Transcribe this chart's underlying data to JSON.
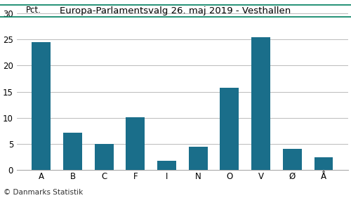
{
  "title": "Europa-Parlamentsvalg 26. maj 2019 - Vesthallen",
  "categories": [
    "A",
    "B",
    "C",
    "F",
    "I",
    "N",
    "O",
    "V",
    "Ø",
    "Å"
  ],
  "values": [
    24.5,
    7.2,
    5.0,
    10.1,
    1.8,
    4.5,
    15.7,
    25.5,
    4.1,
    2.5
  ],
  "bar_color": "#1a6e8a",
  "pct_label": "Pct.",
  "ylim": [
    0,
    32
  ],
  "yticks": [
    0,
    5,
    10,
    15,
    20,
    25,
    30
  ],
  "footer": "© Danmarks Statistik",
  "title_color": "#000000",
  "grid_color": "#b0b0b0",
  "title_line_color": "#007f5f",
  "background_color": "#ffffff",
  "title_fontsize": 9.5,
  "tick_fontsize": 8.5,
  "footer_fontsize": 7.5
}
